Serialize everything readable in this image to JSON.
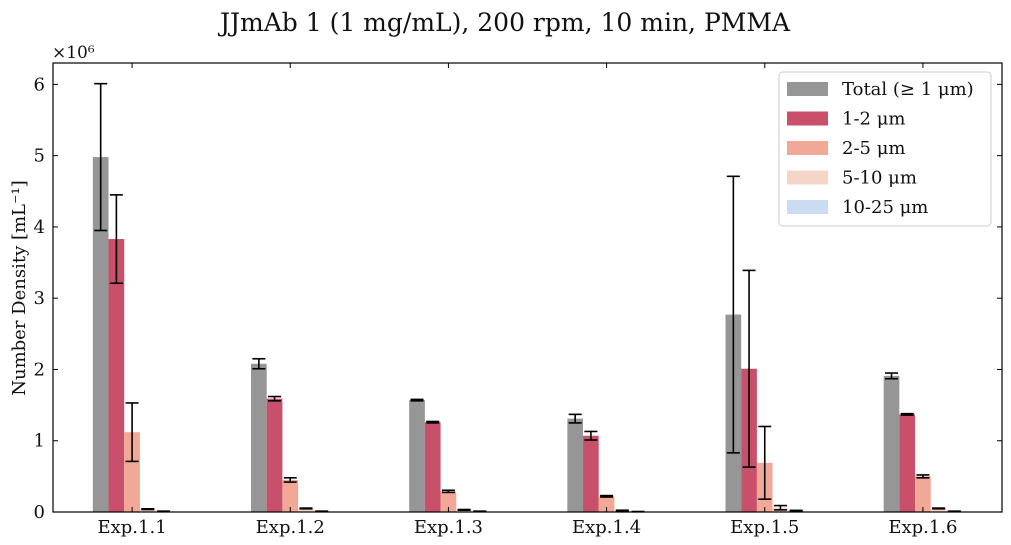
{
  "chart_data": {
    "type": "bar",
    "title": "JJmAb 1 (1 mg/mL), 200 rpm, 10 min, PMMA",
    "xlabel": "",
    "ylabel": "Number Density [mL⁻¹]",
    "y_multiplier_label": "×10⁶",
    "ylim": [
      0,
      6.3
    ],
    "yticks": [
      0,
      1,
      2,
      3,
      4,
      5,
      6
    ],
    "ytick_labels": [
      "0",
      "1",
      "2",
      "3",
      "4",
      "5",
      "6"
    ],
    "categories": [
      "Exp.1.1",
      "Exp.1.2",
      "Exp.1.3",
      "Exp.1.4",
      "Exp.1.5",
      "Exp.1.6"
    ],
    "legend_position": "top-right",
    "grid": false,
    "series": [
      {
        "name": "Total (≥ 1 μm)",
        "color": "#969696",
        "values": [
          4.98,
          2.08,
          1.57,
          1.31,
          2.77,
          1.91
        ],
        "errors": [
          1.03,
          0.07,
          0.01,
          0.06,
          1.94,
          0.04
        ]
      },
      {
        "name": "1-2 μm",
        "color": "#c9506a",
        "values": [
          3.83,
          1.59,
          1.26,
          1.07,
          2.01,
          1.37
        ],
        "errors": [
          0.62,
          0.03,
          0.01,
          0.06,
          1.38,
          0.01
        ]
      },
      {
        "name": "2-5 μm",
        "color": "#f2a896",
        "values": [
          1.12,
          0.45,
          0.29,
          0.22,
          0.69,
          0.5
        ],
        "errors": [
          0.41,
          0.03,
          0.015,
          0.01,
          0.51,
          0.02
        ]
      },
      {
        "name": "5-10 μm",
        "color": "#f5d5c7",
        "values": [
          0.04,
          0.05,
          0.03,
          0.02,
          0.06,
          0.05
        ],
        "errors": [
          0.005,
          0.005,
          0.005,
          0.005,
          0.03,
          0.005
        ]
      },
      {
        "name": "10-25 μm",
        "color": "#cbdcf2",
        "values": [
          0.01,
          0.01,
          0.01,
          0.005,
          0.02,
          0.01
        ],
        "errors": [
          0.002,
          0.002,
          0.002,
          0.002,
          0.003,
          0.002
        ]
      }
    ]
  }
}
